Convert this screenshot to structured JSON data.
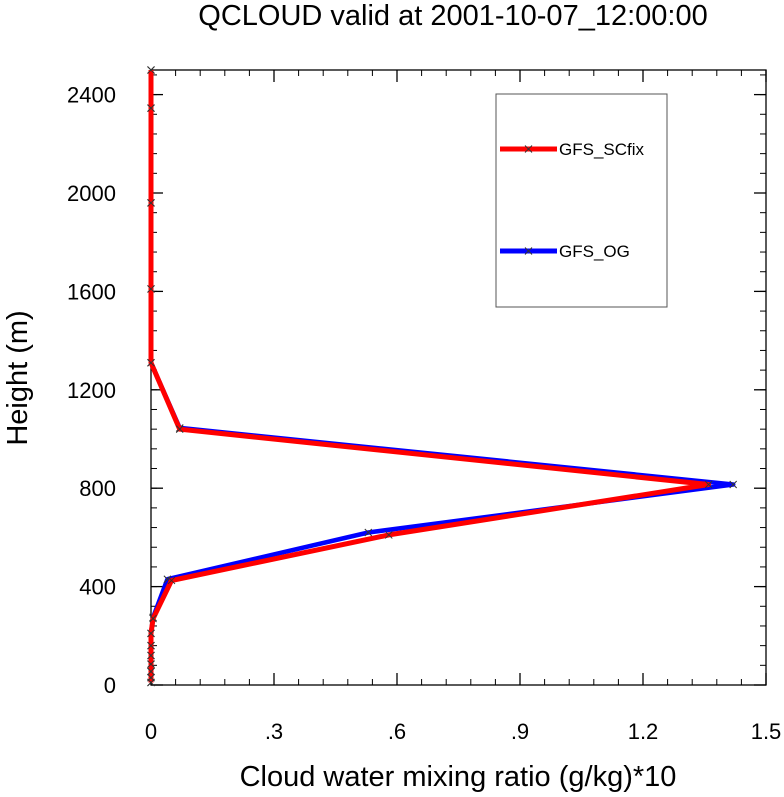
{
  "chart_data": {
    "type": "line",
    "title": "QCLOUD valid at 2001-10-07_12:00:00",
    "xlabel": "Cloud water mixing ratio (g/kg)*10",
    "ylabel": "Height (m)",
    "xlim": [
      0,
      1.5
    ],
    "ylim": [
      0,
      2500
    ],
    "x_ticks": [
      {
        "value": 0,
        "label": "0"
      },
      {
        "value": 0.3,
        "label": ".3"
      },
      {
        "value": 0.6,
        "label": ".6"
      },
      {
        "value": 0.9,
        "label": ".9"
      },
      {
        "value": 1.2,
        "label": "1.2"
      },
      {
        "value": 1.5,
        "label": "1.5"
      }
    ],
    "y_ticks": [
      {
        "value": 0,
        "label": "0"
      },
      {
        "value": 400,
        "label": "400"
      },
      {
        "value": 800,
        "label": "800"
      },
      {
        "value": 1200,
        "label": "1200"
      },
      {
        "value": 1600,
        "label": "1600"
      },
      {
        "value": 2000,
        "label": "2000"
      },
      {
        "value": 2400,
        "label": "2400"
      }
    ],
    "legend_position": "top-right",
    "grid": false,
    "series": [
      {
        "name": "GFS_OG",
        "color": "#0000ff",
        "points": [
          {
            "x": 0,
            "y": 10
          },
          {
            "x": 0,
            "y": 30
          },
          {
            "x": 0,
            "y": 55
          },
          {
            "x": 0,
            "y": 85
          },
          {
            "x": 0,
            "y": 120
          },
          {
            "x": 0,
            "y": 160
          },
          {
            "x": 0,
            "y": 210
          },
          {
            "x": 0.005,
            "y": 275
          },
          {
            "x": 0.04,
            "y": 430
          },
          {
            "x": 0.53,
            "y": 620
          },
          {
            "x": 1.42,
            "y": 815
          },
          {
            "x": 0.07,
            "y": 1045
          },
          {
            "x": 0,
            "y": 1310
          },
          {
            "x": 0,
            "y": 1610
          },
          {
            "x": 0,
            "y": 1960
          },
          {
            "x": 0,
            "y": 2345
          },
          {
            "x": 0,
            "y": 2500
          }
        ]
      },
      {
        "name": "GFS_SCfix",
        "color": "#ff0000",
        "points": [
          {
            "x": 0,
            "y": 10
          },
          {
            "x": 0,
            "y": 30
          },
          {
            "x": 0,
            "y": 55
          },
          {
            "x": 0,
            "y": 85
          },
          {
            "x": 0,
            "y": 120
          },
          {
            "x": 0,
            "y": 160
          },
          {
            "x": 0,
            "y": 210
          },
          {
            "x": 0.005,
            "y": 270
          },
          {
            "x": 0.05,
            "y": 425
          },
          {
            "x": 0.58,
            "y": 610
          },
          {
            "x": 1.36,
            "y": 815
          },
          {
            "x": 0.07,
            "y": 1040
          },
          {
            "x": 0,
            "y": 1310
          },
          {
            "x": 0,
            "y": 1610
          },
          {
            "x": 0,
            "y": 1960
          },
          {
            "x": 0,
            "y": 2345
          },
          {
            "x": 0,
            "y": 2500
          }
        ]
      }
    ],
    "legend_order": [
      "GFS_SCfix",
      "GFS_OG"
    ]
  }
}
